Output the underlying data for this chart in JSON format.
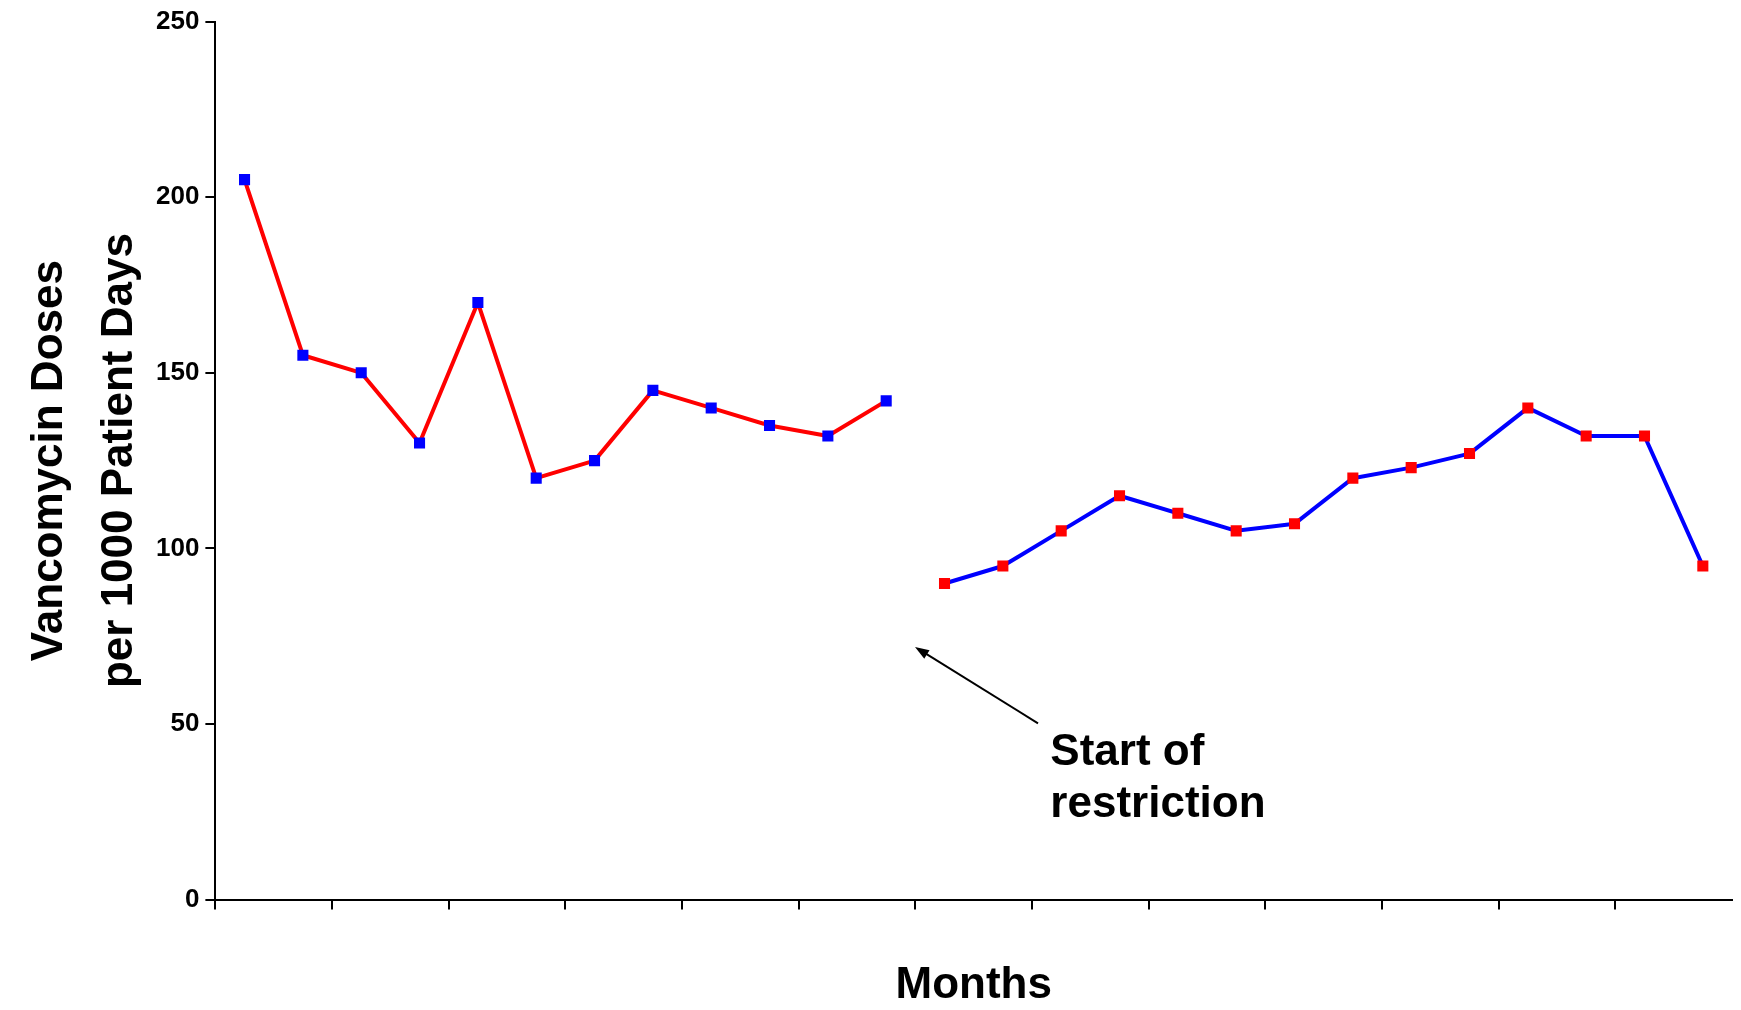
{
  "chart_data": {
    "type": "line",
    "xlabel": "Months",
    "ylabel": "Vancomycin Doses\nper 1000 Patient Days",
    "categories": [
      null,
      null,
      null,
      null,
      null,
      null,
      null,
      null,
      null,
      null,
      null,
      null,
      null,
      null,
      null,
      null,
      null,
      null,
      null,
      null,
      null,
      null,
      null,
      null,
      null,
      null
    ],
    "series": [
      {
        "color": "#ff0000",
        "colors": [
          "#0000ff",
          "#0000ff",
          "#0000ff",
          "#0000ff",
          "#0000ff",
          "#0000ff",
          "#0000ff",
          "#0000ff",
          "#0000ff",
          "#0000ff",
          "#0000ff",
          "#0000ff",
          null,
          null,
          null,
          null,
          null,
          null,
          null,
          null,
          null,
          null,
          null,
          null,
          null,
          null
        ],
        "values": [
          205,
          155,
          150,
          130,
          170,
          120,
          125,
          145,
          140,
          135,
          132,
          142,
          null,
          null,
          null,
          null,
          null,
          null,
          null,
          null,
          null,
          null,
          null,
          null,
          null,
          null
        ]
      },
      {
        "color": "#0000ff",
        "colors": [
          null,
          null,
          null,
          null,
          null,
          null,
          null,
          null,
          null,
          null,
          null,
          null,
          "#ff0000",
          "#ff0000",
          "#ff0000",
          "#ff0000",
          "#ff0000",
          "#ff0000",
          "#ff0000",
          "#ff0000",
          "#ff0000",
          "#ff0000",
          "#ff0000",
          "#ff0000",
          "#ff0000",
          "#ff0000"
        ],
        "values": [
          null,
          null,
          null,
          null,
          null,
          null,
          null,
          null,
          null,
          null,
          null,
          null,
          90,
          95,
          105,
          115,
          110,
          105,
          107,
          120,
          123,
          127,
          140,
          132,
          132,
          95
        ]
      }
    ],
    "ylim": [
      0,
      250
    ],
    "yticks": [
      0,
      50,
      100,
      150,
      200,
      250
    ],
    "grid": false,
    "legend": false,
    "marker": "square",
    "line_style": "solid",
    "annotations": [
      "Start of\nrestriction"
    ]
  }
}
